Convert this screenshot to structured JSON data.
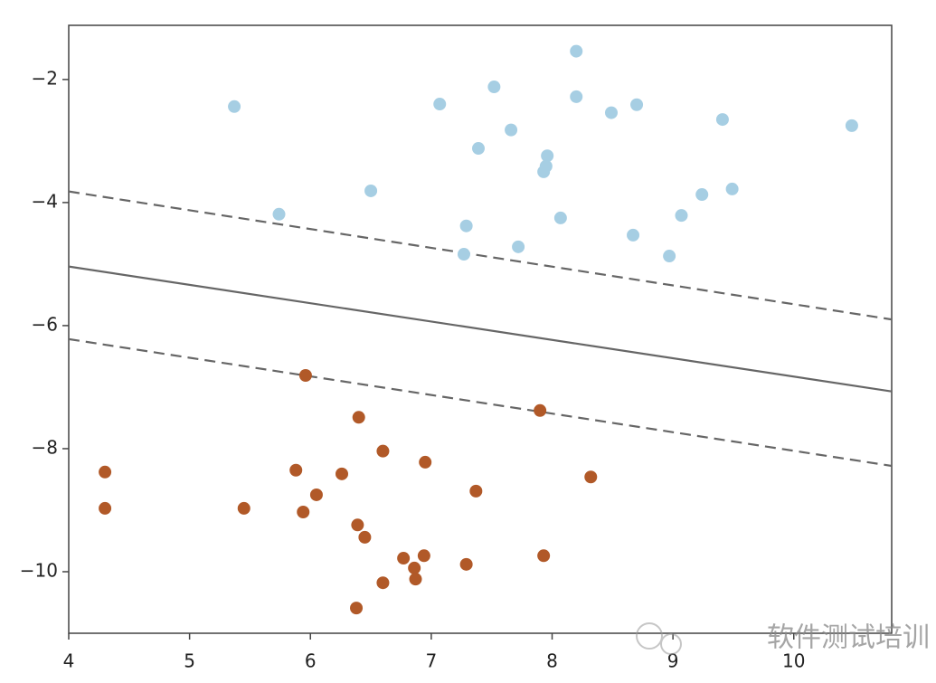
{
  "chart_data": {
    "type": "scatter",
    "xlim": [
      4,
      10.81
    ],
    "ylim": [
      -11,
      -1.12
    ],
    "xticks": [
      4,
      5,
      6,
      7,
      8,
      9,
      10
    ],
    "yticks": [
      {
        "value": -2,
        "label": "−2"
      },
      {
        "value": -4,
        "label": "−4"
      },
      {
        "value": -6,
        "label": "−6"
      },
      {
        "value": -8,
        "label": "−8"
      },
      {
        "value": -10,
        "label": "−10"
      }
    ],
    "series": [
      {
        "color": "#a6cee3",
        "x": [
          5.37,
          5.74,
          6.5,
          7.07,
          7.52,
          7.39,
          7.66,
          7.29,
          7.27,
          7.72,
          7.96,
          7.95,
          7.93,
          8.2,
          8.2,
          8.07,
          8.49,
          8.7,
          8.67,
          8.97,
          9.07,
          9.24,
          9.41,
          9.49,
          10.48
        ],
        "values": [
          -2.44,
          -4.19,
          -3.81,
          -2.4,
          -2.12,
          -3.12,
          -2.82,
          -4.38,
          -4.84,
          -4.72,
          -3.24,
          -3.41,
          -3.5,
          -1.54,
          -2.28,
          -4.25,
          -2.54,
          -2.41,
          -4.53,
          -4.87,
          -4.21,
          -3.87,
          -2.65,
          -3.78,
          -2.75
        ]
      },
      {
        "color": "#b15928",
        "x": [
          4.3,
          4.3,
          5.45,
          5.96,
          5.88,
          5.94,
          6.05,
          6.26,
          6.4,
          6.6,
          6.39,
          6.45,
          6.38,
          6.6,
          6.77,
          6.86,
          6.87,
          6.94,
          6.95,
          7.37,
          7.29,
          7.9,
          7.93,
          8.32
        ],
        "values": [
          -8.38,
          -8.97,
          -8.97,
          -6.81,
          -8.35,
          -9.03,
          -8.75,
          -8.41,
          -7.49,
          -8.04,
          -9.24,
          -9.44,
          -10.59,
          -10.18,
          -9.78,
          -9.94,
          -10.12,
          -9.74,
          -8.22,
          -8.69,
          -9.88,
          -7.38,
          -9.74,
          -8.46
        ]
      }
    ],
    "lines": [
      {
        "x": [
          4,
          10.81
        ],
        "values": [
          -5.04,
          -7.07
        ],
        "color": "#666666",
        "dashed": false
      },
      {
        "x": [
          4,
          10.81
        ],
        "values": [
          -3.82,
          -5.9
        ],
        "color": "#666666",
        "dashed": true
      },
      {
        "x": [
          4,
          10.81
        ],
        "values": [
          -6.22,
          -8.28
        ],
        "color": "#666666",
        "dashed": true
      }
    ]
  },
  "watermark": "软件测试培训"
}
